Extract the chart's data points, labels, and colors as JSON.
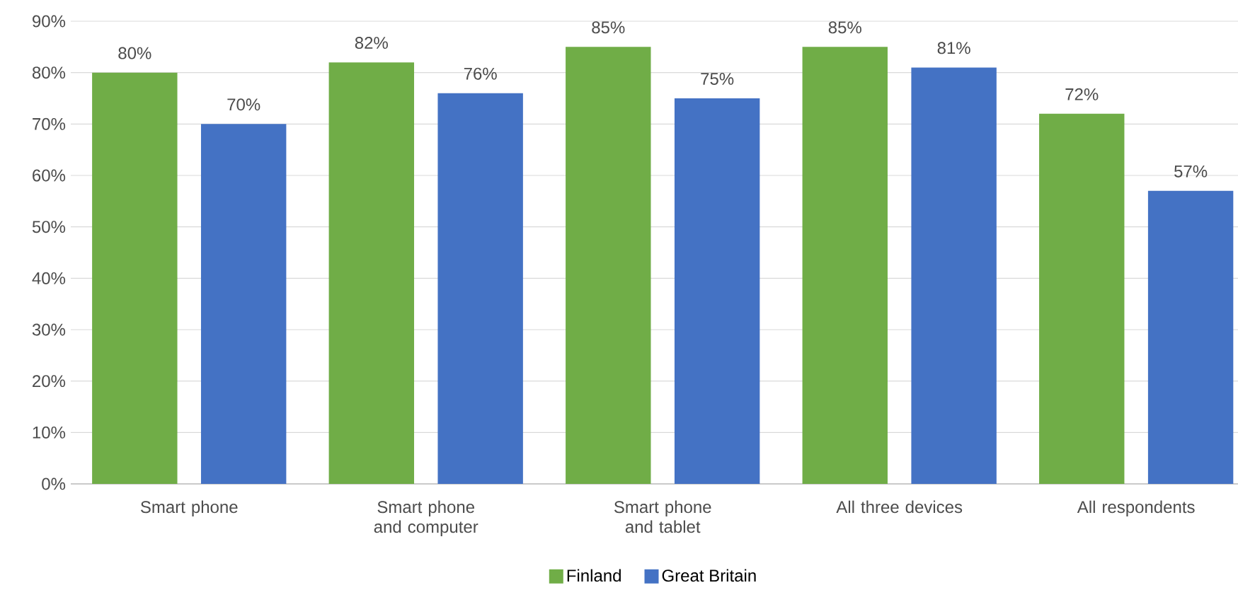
{
  "chart_data": {
    "type": "bar",
    "categories": [
      "Smart phone",
      "Smart phone and computer",
      "Smart phone and tablet",
      "All three devices",
      "All respondents"
    ],
    "series": [
      {
        "name": "Finland",
        "color": "#70ad47",
        "values": [
          80,
          82,
          85,
          85,
          72
        ],
        "value_labels": [
          "80%",
          "82%",
          "85%",
          "85%",
          "72%"
        ]
      },
      {
        "name": "Great Britain",
        "color": "#4472c4",
        "values": [
          70,
          76,
          75,
          81,
          57
        ],
        "value_labels": [
          "70%",
          "76%",
          "75%",
          "81%",
          "57%"
        ]
      }
    ],
    "ylim": [
      0,
      90
    ],
    "yticks": [
      {
        "value": 0,
        "label": "0%"
      },
      {
        "value": 10,
        "label": "10%"
      },
      {
        "value": 20,
        "label": "20%"
      },
      {
        "value": 30,
        "label": "30%"
      },
      {
        "value": 40,
        "label": "40%"
      },
      {
        "value": 50,
        "label": "50%"
      },
      {
        "value": 60,
        "label": "60%"
      },
      {
        "value": 70,
        "label": "70%"
      },
      {
        "value": 80,
        "label": "80%"
      },
      {
        "value": 90,
        "label": "90%"
      }
    ],
    "grid": "y",
    "legend": "bottom"
  }
}
